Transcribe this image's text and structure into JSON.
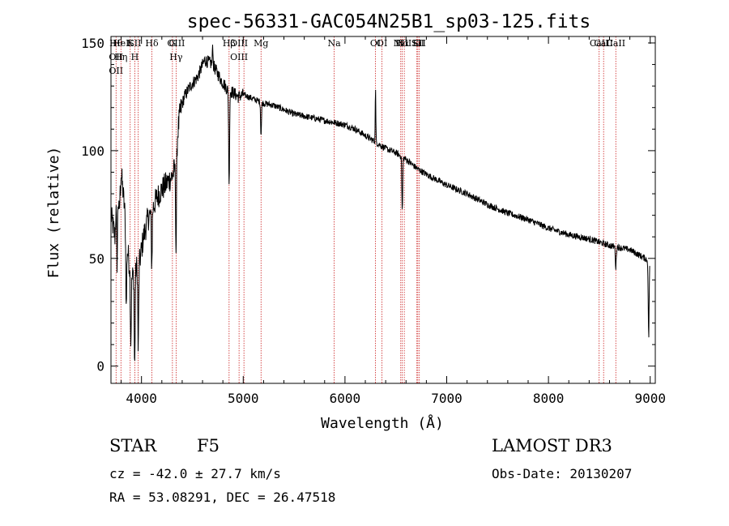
{
  "chart_data": {
    "type": "line",
    "title": "spec-56331-GAC054N25B1_sp03-125.fits",
    "xlabel": "Wavelength (Å)",
    "ylabel": "Flux (relative)",
    "xlim": [
      3700,
      9050
    ],
    "ylim": [
      -8,
      153
    ],
    "xticks": [
      4000,
      5000,
      6000,
      7000,
      8000,
      9000
    ],
    "yticks": [
      0,
      50,
      100,
      150
    ],
    "grid": false,
    "lines": [
      {
        "wave": 3750,
        "labels": [
          "Hθ",
          "OII",
          "OII"
        ]
      },
      {
        "wave": 3798,
        "labels": [
          "HeI",
          "Hη"
        ]
      },
      {
        "wave": 3889,
        "labels": [
          "K"
        ]
      },
      {
        "wave": 3934,
        "labels": [
          "SII",
          "H"
        ]
      },
      {
        "wave": 3968,
        "labels": []
      },
      {
        "wave": 4102,
        "labels": [
          "Hδ"
        ]
      },
      {
        "wave": 4304,
        "labels": [
          "G"
        ]
      },
      {
        "wave": 4340,
        "labels": [
          "OIII",
          "Hγ"
        ]
      },
      {
        "wave": 4861,
        "labels": [
          "Hβ"
        ]
      },
      {
        "wave": 4959,
        "labels": [
          "OIII",
          "OIII"
        ]
      },
      {
        "wave": 5007,
        "labels": []
      },
      {
        "wave": 5175,
        "labels": [
          "Mg"
        ]
      },
      {
        "wave": 5894,
        "labels": [
          "Na"
        ]
      },
      {
        "wave": 6300,
        "labels": [
          "OI"
        ]
      },
      {
        "wave": 6364,
        "labels": [
          "OI"
        ]
      },
      {
        "wave": 6548,
        "labels": [
          "NII"
        ]
      },
      {
        "wave": 6563,
        "labels": [
          "Hα"
        ]
      },
      {
        "wave": 6583,
        "labels": [
          "NII"
        ]
      },
      {
        "wave": 6707,
        "labels": [
          "Li"
        ]
      },
      {
        "wave": 6716,
        "labels": [
          "SII"
        ]
      },
      {
        "wave": 6731,
        "labels": [
          "SII"
        ]
      },
      {
        "wave": 8498,
        "labels": [
          "CaII"
        ]
      },
      {
        "wave": 8542,
        "labels": [
          "CaII"
        ]
      },
      {
        "wave": 8662,
        "labels": [
          "CaII"
        ]
      }
    ],
    "series": [
      {
        "name": "spectrum",
        "continuum": {
          "wave": [
            3700,
            3740,
            3760,
            3780,
            3800,
            3830,
            3860,
            3900,
            3940,
            3980,
            4020,
            4060,
            4100,
            4150,
            4200,
            4250,
            4300,
            4330,
            4360,
            4380,
            4420,
            4480,
            4550,
            4620,
            4700,
            4780,
            4850,
            4900,
            4950,
            5000,
            5100,
            5200,
            5300,
            5500,
            5700,
            5900,
            6000,
            6100,
            6200,
            6300,
            6400,
            6500,
            6600,
            6700,
            6800,
            7000,
            7200,
            7400,
            7600,
            7800,
            8000,
            8200,
            8400,
            8600,
            8800,
            8950,
            8990
          ],
          "flux": [
            70,
            60,
            88,
            70,
            90,
            75,
            55,
            40,
            45,
            48,
            60,
            68,
            72,
            78,
            82,
            85,
            88,
            92,
            110,
            118,
            125,
            130,
            134,
            142,
            140,
            133,
            128,
            127,
            125,
            126,
            124,
            122,
            121,
            117,
            115,
            113,
            112,
            110,
            107,
            104,
            101,
            99,
            96,
            92,
            89,
            84,
            80,
            75,
            71,
            68,
            64,
            61,
            59,
            56,
            54,
            50,
            48
          ]
        },
        "absorption": [
          {
            "wave": 3760,
            "depth": 40
          },
          {
            "wave": 3850,
            "depth": 35
          },
          {
            "wave": 3895,
            "depth": 30
          },
          {
            "wave": 3933,
            "depth": 45
          },
          {
            "wave": 3968,
            "depth": 40
          },
          {
            "wave": 4101,
            "depth": 25
          },
          {
            "wave": 4340,
            "depth": 45
          },
          {
            "wave": 4861,
            "depth": 45
          },
          {
            "wave": 5175,
            "depth": 15
          },
          {
            "wave": 6563,
            "depth": 25
          },
          {
            "wave": 8662,
            "depth": 10
          },
          {
            "wave": 8985,
            "depth": 35
          }
        ],
        "emission": [
          {
            "wave": 6300,
            "height": 25
          },
          {
            "wave": 4700,
            "height": 10
          }
        ]
      }
    ]
  },
  "info": {
    "object_class": "STAR",
    "subclass": "F5",
    "survey": "LAMOST DR3",
    "cz": "cz = -42.0 ± 27.7 km/s",
    "obs_date": "Obs-Date: 20130207",
    "coords": "RA =  53.08291, DEC =  26.47518"
  }
}
